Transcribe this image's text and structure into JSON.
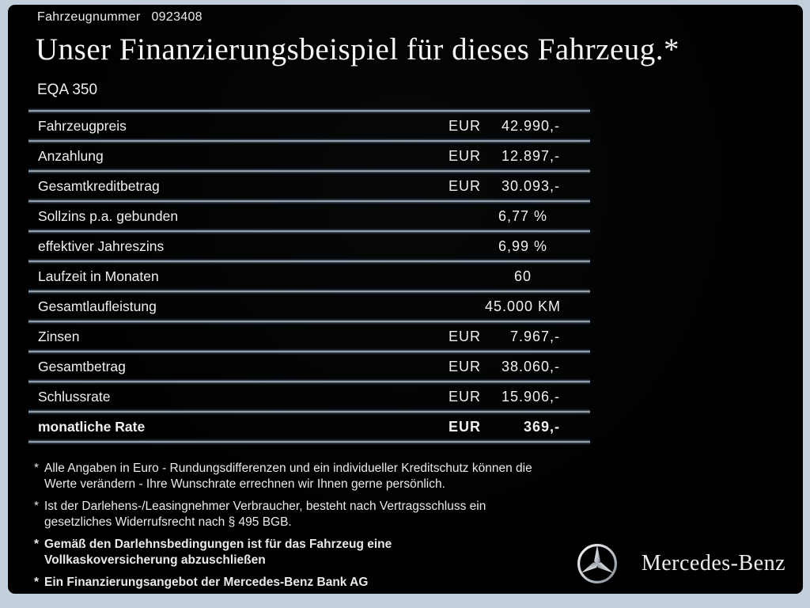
{
  "header": {
    "vehicle_number_label": "Fahrzeugnummer",
    "vehicle_number": "0923408",
    "title": "Unser Finanzierungsbeispiel für dieses Fahrzeug.*",
    "model": "EQA 350"
  },
  "table": {
    "rows": [
      {
        "label": "Fahrzeugpreis",
        "currency": "EUR",
        "value": "42.990,-",
        "align": "right",
        "bold": false
      },
      {
        "label": "Anzahlung",
        "currency": "EUR",
        "value": "12.897,-",
        "align": "right",
        "bold": false
      },
      {
        "label": "Gesamtkreditbetrag",
        "currency": "EUR",
        "value": "30.093,-",
        "align": "right",
        "bold": false
      },
      {
        "label": "Sollzins p.a. gebunden",
        "currency": "",
        "value": "6,77 %",
        "align": "center",
        "bold": false
      },
      {
        "label": "effektiver Jahreszins",
        "currency": "",
        "value": "6,99 %",
        "align": "center",
        "bold": false
      },
      {
        "label": "Laufzeit in Monaten",
        "currency": "",
        "value": "60",
        "align": "center",
        "bold": false
      },
      {
        "label": "Gesamtlaufleistung",
        "currency": "",
        "value": "45.000 KM",
        "align": "center",
        "bold": false
      },
      {
        "label": "Zinsen",
        "currency": "EUR",
        "value": "7.967,-",
        "align": "right",
        "bold": false
      },
      {
        "label": "Gesamtbetrag",
        "currency": "EUR",
        "value": "38.060,-",
        "align": "right",
        "bold": false
      },
      {
        "label": "Schlussrate",
        "currency": "EUR",
        "value": "15.906,-",
        "align": "right",
        "bold": false
      },
      {
        "label": "monatliche Rate",
        "currency": "EUR",
        "value": "369,-",
        "align": "right",
        "bold": true
      }
    ]
  },
  "footnotes": [
    {
      "marker": "*",
      "bold": false,
      "text": "Alle Angaben in Euro - Rundungsdifferenzen und ein individueller Kreditschutz können die\nWerte verändern - Ihre Wunschrate errechnen wir Ihnen gerne persönlich."
    },
    {
      "marker": "*",
      "bold": false,
      "text": "Ist der Darlehens-/Leasingnehmer Verbraucher, besteht nach Vertragsschluss ein\ngesetzliches Widerrufsrecht nach § 495 BGB."
    },
    {
      "marker": "*",
      "bold": true,
      "text": "Gemäß den Darlehnsbedingungen ist für das Fahrzeug eine\nVollkaskoversicherung abzuschließen"
    },
    {
      "marker": "*",
      "bold": true,
      "text": "Ein Finanzierungsangebot der Mercedes-Benz Bank AG"
    }
  ],
  "brand": {
    "logo_icon": "mercedes-star-icon",
    "wordmark": "Mercedes-Benz"
  },
  "colors": {
    "frame_border": "#c3cfda",
    "background": "#000000",
    "text": "#f0f1f2",
    "separator_line": "#bac6d0",
    "separator_glow": "#1b2633"
  }
}
